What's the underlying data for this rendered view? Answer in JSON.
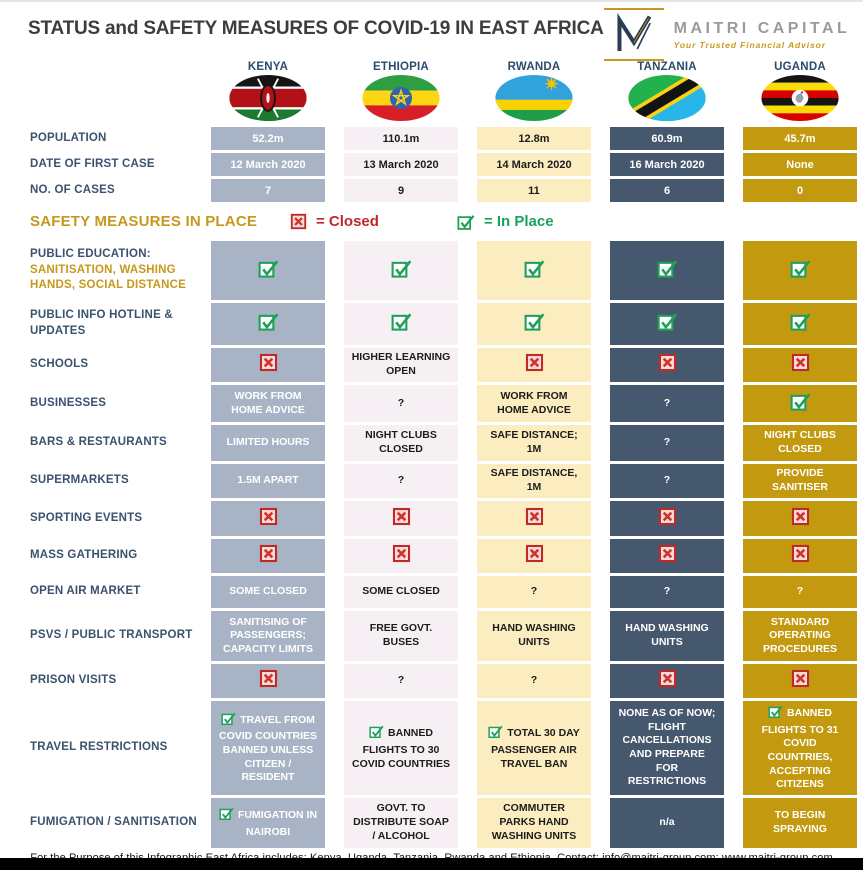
{
  "header": {
    "title": "STATUS and SAFETY MEASURES OF COVID-19 IN EAST AFRICA",
    "logo": {
      "name": "MAITRI CAPITAL",
      "tagline": "Your Trusted Financial Advisor"
    }
  },
  "columns": [
    {
      "country": "KENYA",
      "flag": "kenya",
      "bg": "#a8b4c5",
      "text_color": "#ffffff"
    },
    {
      "country": "ETHIOPIA",
      "flag": "ethiopia",
      "bg": "#f6f0f5",
      "text_color": "#1c1c1c"
    },
    {
      "country": "RWANDA",
      "flag": "rwanda",
      "bg": "#fbedbf",
      "text_color": "#1c1c1c"
    },
    {
      "country": "TANZANIA",
      "flag": "tanzania",
      "bg": "#46586e",
      "text_color": "#ffffff"
    },
    {
      "country": "UGANDA",
      "flag": "uganda",
      "bg": "#c2990f",
      "text_color": "#ffffff"
    }
  ],
  "stats_rows": [
    {
      "label": "POPULATION",
      "values": [
        "52.2m",
        "110.1m",
        "12.8m",
        "60.9m",
        "45.7m"
      ]
    },
    {
      "label": "DATE OF FIRST CASE",
      "values": [
        "12 March 2020",
        "13 March 2020",
        "14 March 2020",
        "16 March 2020",
        "None"
      ]
    },
    {
      "label": "NO. OF CASES",
      "values": [
        "7",
        "9",
        "11",
        "6",
        "0"
      ]
    }
  ],
  "legend": {
    "section_title": "SAFETY MEASURES IN PLACE",
    "closed_label": "=  Closed",
    "in_place_label": "=  In Place",
    "closed_color": "#c0272d",
    "in_place_color": "#17a35c"
  },
  "measure_rows": [
    {
      "label": "PUBLIC EDUCATION:",
      "sublabel": "SANITISATION, WASHING HANDS, SOCIAL DISTANCE",
      "cells": [
        {
          "icon": "check"
        },
        {
          "icon": "check"
        },
        {
          "icon": "check"
        },
        {
          "icon": "check"
        },
        {
          "icon": "check"
        }
      ]
    },
    {
      "label": "PUBLIC INFO HOTLINE & UPDATES",
      "cells": [
        {
          "icon": "check"
        },
        {
          "icon": "check"
        },
        {
          "icon": "check"
        },
        {
          "icon": "check"
        },
        {
          "icon": "check"
        }
      ]
    },
    {
      "label": "SCHOOLS",
      "cells": [
        {
          "icon": "x"
        },
        {
          "text": "HIGHER LEARNING OPEN"
        },
        {
          "icon": "x"
        },
        {
          "icon": "x"
        },
        {
          "icon": "x"
        }
      ]
    },
    {
      "label": "BUSINESSES",
      "cells": [
        {
          "text": "WORK FROM HOME ADVICE"
        },
        {
          "text": "?"
        },
        {
          "text": "WORK FROM HOME ADVICE"
        },
        {
          "text": "?"
        },
        {
          "icon": "check"
        }
      ]
    },
    {
      "label": "BARS & RESTAURANTS",
      "cells": [
        {
          "text": "LIMITED HOURS"
        },
        {
          "text": "NIGHT CLUBS CLOSED"
        },
        {
          "text": "SAFE DISTANCE; 1M"
        },
        {
          "text": "?"
        },
        {
          "text": "NIGHT CLUBS CLOSED"
        }
      ]
    },
    {
      "label": "SUPERMARKETS",
      "cells": [
        {
          "text": "1.5M APART"
        },
        {
          "text": "?"
        },
        {
          "text": "SAFE DISTANCE, 1M"
        },
        {
          "text": "?"
        },
        {
          "text": "PROVIDE SANITISER"
        }
      ]
    },
    {
      "label": "SPORTING EVENTS",
      "cells": [
        {
          "icon": "x"
        },
        {
          "icon": "x"
        },
        {
          "icon": "x"
        },
        {
          "icon": "x"
        },
        {
          "icon": "x"
        }
      ]
    },
    {
      "label": "MASS GATHERING",
      "cells": [
        {
          "icon": "x"
        },
        {
          "icon": "x"
        },
        {
          "icon": "x"
        },
        {
          "icon": "x"
        },
        {
          "icon": "x"
        }
      ]
    },
    {
      "label": "OPEN AIR MARKET",
      "cells": [
        {
          "text": "SOME CLOSED"
        },
        {
          "text": "SOME CLOSED"
        },
        {
          "text": "?"
        },
        {
          "text": "?"
        },
        {
          "text": "?"
        }
      ]
    },
    {
      "label": "PSVS / PUBLIC TRANSPORT",
      "cells": [
        {
          "text": "SANITISING OF PASSENGERS; CAPACITY LIMITS"
        },
        {
          "text": "FREE GOVT. BUSES"
        },
        {
          "text": "HAND WASHING UNITS"
        },
        {
          "text": "HAND WASHING UNITS"
        },
        {
          "text": "STANDARD OPERATING PROCEDURES"
        }
      ]
    },
    {
      "label": "PRISON VISITS",
      "cells": [
        {
          "icon": "x"
        },
        {
          "text": "?"
        },
        {
          "text": "?"
        },
        {
          "icon": "x"
        },
        {
          "icon": "x"
        }
      ]
    },
    {
      "label": "TRAVEL RESTRICTIONS",
      "cells": [
        {
          "icon": "check",
          "text": "TRAVEL FROM COVID COUNTRIES BANNED UNLESS CITIZEN / RESIDENT"
        },
        {
          "icon": "check",
          "text": "BANNED FLIGHTS TO 30 COVID COUNTRIES"
        },
        {
          "icon": "check",
          "text": "TOTAL 30 DAY PASSENGER AIR TRAVEL BAN"
        },
        {
          "text": "NONE AS OF NOW; FLIGHT CANCELLATIONS AND PREPARE FOR RESTRICTIONS"
        },
        {
          "icon": "check",
          "text": "BANNED FLIGHTS TO 31 COVID COUNTRIES, ACCEPTING CITIZENS"
        }
      ]
    },
    {
      "label": "FUMIGATION / SANITISATION",
      "cells": [
        {
          "icon": "check",
          "text": "FUMIGATION IN NAIROBI"
        },
        {
          "text": "GOVT. TO DISTRIBUTE SOAP / ALCOHOL"
        },
        {
          "text": "COMMUTER PARKS HAND WASHING UNITS"
        },
        {
          "text": "n/a"
        },
        {
          "text": "TO BEGIN SPRAYING"
        }
      ]
    }
  ],
  "footer": {
    "note": "For the Purpose of this Infographic East Africa includes: Kenya, Uganda, Tanzania, Rwanda and Ethiopia. Contact: info@maitri-group.com; www.maitri-group.com"
  }
}
